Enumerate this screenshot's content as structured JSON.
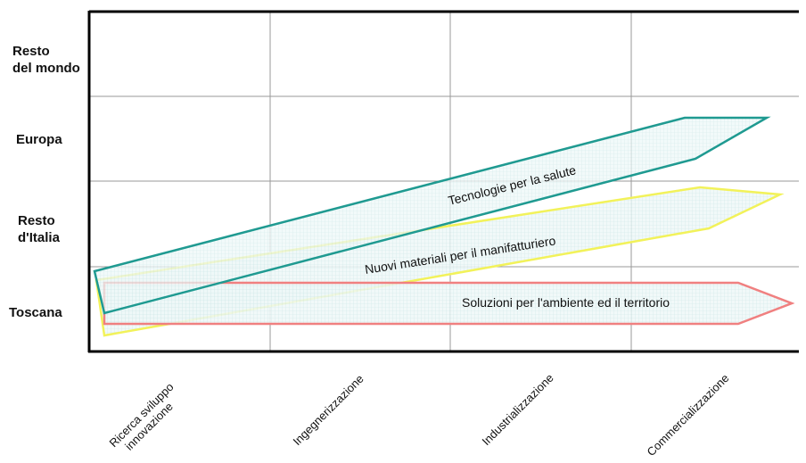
{
  "rows": [
    {
      "label_lines": [
        "Resto",
        "del mondo"
      ]
    },
    {
      "label_lines": [
        "Europa"
      ]
    },
    {
      "label_lines": [
        "Resto",
        "d'Italia"
      ]
    },
    {
      "label_lines": [
        "Toscana"
      ]
    }
  ],
  "columns": [
    {
      "label_lines": [
        "Ricerca sviluppo",
        "innovazione"
      ]
    },
    {
      "label_lines": [
        "Ingegnerizzazione"
      ]
    },
    {
      "label_lines": [
        "Industrializzazione"
      ]
    },
    {
      "label_lines": [
        "Commercializzazione"
      ]
    }
  ],
  "arrows": {
    "ambiente": {
      "label": "Soluzioni per l'ambiente ed il territorio",
      "color": "#f08080"
    },
    "materiali": {
      "label": "Nuovi materiali per il manifatturiero",
      "color": "#f2f25a"
    },
    "salute": {
      "label": "Tecnologie per la salute",
      "color": "#1f9a91"
    }
  }
}
